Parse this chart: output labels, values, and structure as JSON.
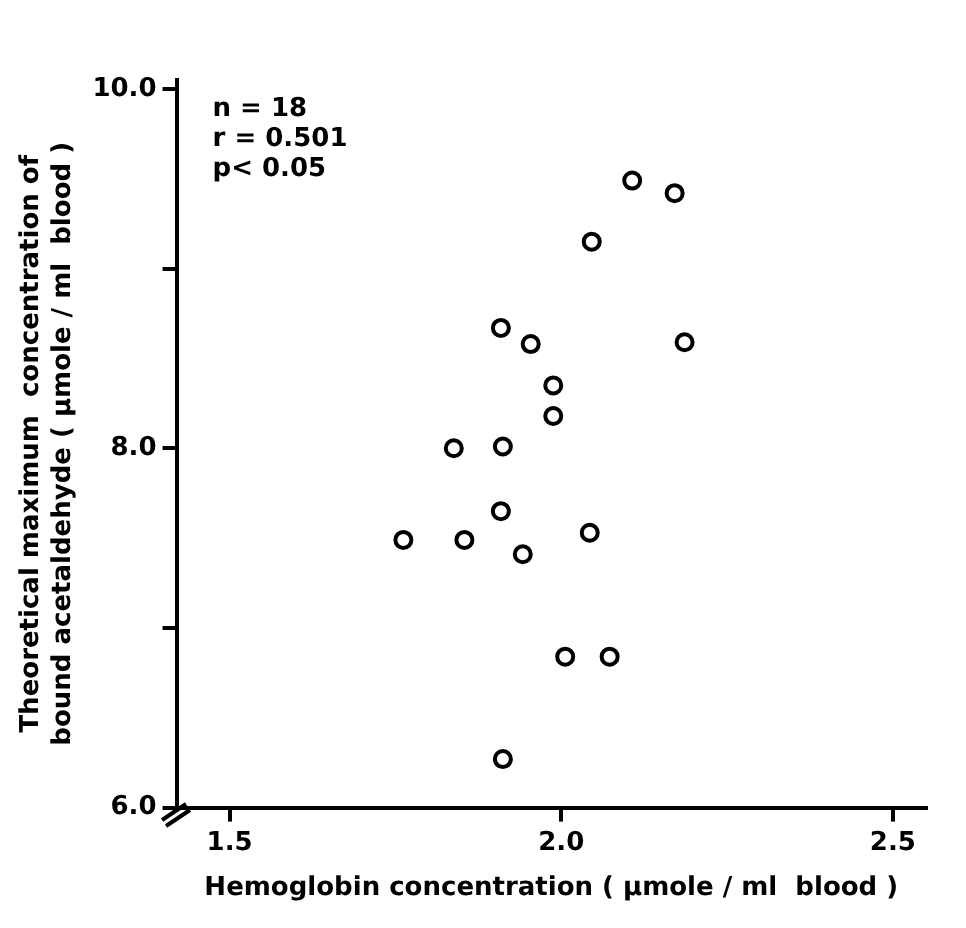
{
  "chart_data": {
    "type": "scatter",
    "xlabel": "Hemoglobin concentration ( µmole / ml  blood )",
    "ylabel": "Theoretical maximum  concentration of bound acetaldehyde ( µmole / ml  blood )",
    "annotations": [
      "n = 18",
      "r = 0.501",
      "p< 0.05"
    ],
    "x": [
      1.912,
      1.762,
      1.854,
      1.838,
      1.912,
      1.909,
      1.942,
      2.006,
      2.073,
      1.909,
      1.954,
      1.988,
      1.988,
      2.046,
      2.107,
      2.171,
      2.186,
      2.043
    ],
    "series": [
      {
        "color": "#000000",
        "values": [
          6.27,
          7.49,
          7.49,
          8.0,
          8.01,
          7.65,
          7.41,
          6.84,
          6.84,
          8.67,
          8.58,
          8.35,
          8.18,
          9.15,
          9.49,
          9.42,
          8.59,
          7.53
        ]
      }
    ],
    "xlim": [
      1.42,
      2.55
    ],
    "xticks": [
      {
        "value": 1.5,
        "label": "1.5"
      },
      {
        "value": 2.0,
        "label": "2.0"
      },
      {
        "value": 2.5,
        "label": "2.5"
      }
    ],
    "ylim": [
      6.0,
      10.05
    ],
    "yticks": [
      {
        "value": 6,
        "label": "6.0"
      },
      {
        "value": 7,
        "label": null
      },
      {
        "value": 8,
        "label": "8.0"
      },
      {
        "value": 9,
        "label": null
      },
      {
        "value": 10,
        "label": "10.0"
      }
    ],
    "grid": false,
    "legend": false,
    "marker": "circle"
  }
}
